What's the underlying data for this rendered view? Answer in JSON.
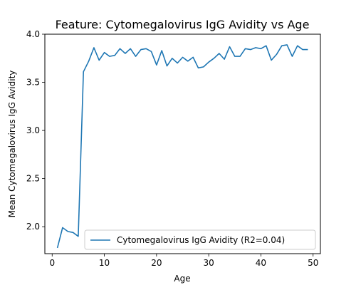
{
  "chart_data": {
    "type": "line",
    "title": "Feature: Cytomegalovirus IgG Avidity vs Age",
    "xlabel": "Age",
    "ylabel": "Mean Cytomegalovirus IgG Avidity",
    "xlim": [
      -1.4,
      51.4
    ],
    "ylim": [
      1.72,
      4.0
    ],
    "xticks": [
      0,
      10,
      20,
      30,
      40,
      50
    ],
    "yticks": [
      2.0,
      2.5,
      3.0,
      3.5,
      4.0
    ],
    "grid": false,
    "legend_position": "lower-right",
    "series": [
      {
        "name": "Cytomegalovirus IgG Avidity (R2=0.04)",
        "color": "#1f77b4",
        "x": [
          1,
          2,
          3,
          4,
          5,
          6,
          7,
          8,
          9,
          10,
          11,
          12,
          13,
          14,
          15,
          16,
          17,
          18,
          19,
          20,
          21,
          22,
          23,
          24,
          25,
          26,
          27,
          28,
          29,
          30,
          31,
          32,
          33,
          34,
          35,
          36,
          37,
          38,
          39,
          40,
          41,
          42,
          43,
          44,
          45,
          46,
          47,
          48,
          49
        ],
        "y": [
          1.78,
          1.99,
          1.95,
          1.94,
          1.9,
          3.61,
          3.72,
          3.86,
          3.73,
          3.81,
          3.77,
          3.78,
          3.85,
          3.8,
          3.85,
          3.77,
          3.84,
          3.85,
          3.82,
          3.68,
          3.83,
          3.67,
          3.75,
          3.7,
          3.76,
          3.72,
          3.76,
          3.65,
          3.66,
          3.71,
          3.75,
          3.8,
          3.74,
          3.87,
          3.77,
          3.77,
          3.85,
          3.84,
          3.86,
          3.85,
          3.88,
          3.73,
          3.79,
          3.88,
          3.89,
          3.77,
          3.88,
          3.84,
          3.84
        ]
      }
    ]
  }
}
